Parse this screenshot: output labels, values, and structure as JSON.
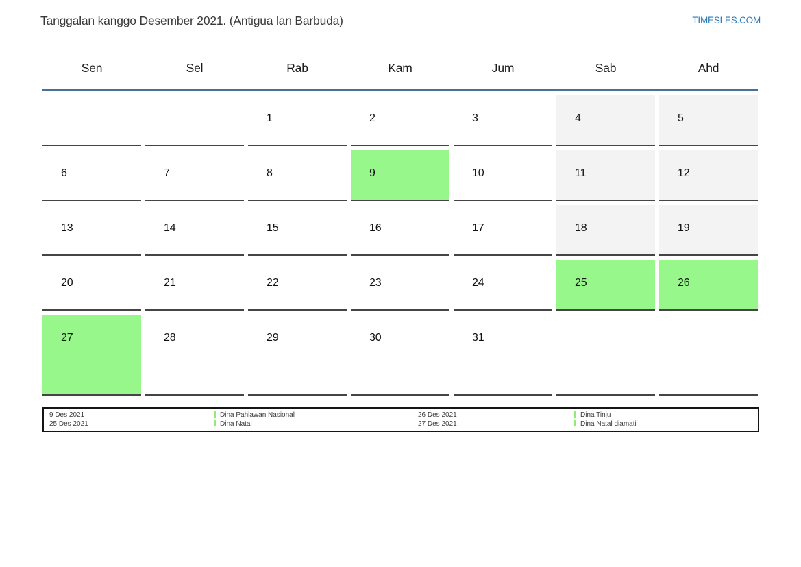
{
  "header": {
    "title": "Tanggalan kanggo Desember 2021. (Antigua lan Barbuda)",
    "site_link": "TIMESLES.COM"
  },
  "calendar": {
    "day_headers": [
      "Sen",
      "Sel",
      "Rab",
      "Kam",
      "Jum",
      "Sab",
      "Ahd"
    ],
    "weeks": [
      [
        {
          "day": ""
        },
        {
          "day": ""
        },
        {
          "day": "1"
        },
        {
          "day": "2"
        },
        {
          "day": "3"
        },
        {
          "day": "4",
          "weekend": true
        },
        {
          "day": "5",
          "weekend": true
        }
      ],
      [
        {
          "day": "6"
        },
        {
          "day": "7"
        },
        {
          "day": "8"
        },
        {
          "day": "9",
          "holiday": true
        },
        {
          "day": "10"
        },
        {
          "day": "11",
          "weekend": true
        },
        {
          "day": "12",
          "weekend": true
        }
      ],
      [
        {
          "day": "13"
        },
        {
          "day": "14"
        },
        {
          "day": "15"
        },
        {
          "day": "16"
        },
        {
          "day": "17"
        },
        {
          "day": "18",
          "weekend": true
        },
        {
          "day": "19",
          "weekend": true
        }
      ],
      [
        {
          "day": "20"
        },
        {
          "day": "21"
        },
        {
          "day": "22"
        },
        {
          "day": "23"
        },
        {
          "day": "24"
        },
        {
          "day": "25",
          "holiday": true
        },
        {
          "day": "26",
          "holiday": true
        }
      ],
      [
        {
          "day": "27",
          "holiday": true
        },
        {
          "day": "28"
        },
        {
          "day": "29"
        },
        {
          "day": "30"
        },
        {
          "day": "31"
        },
        {
          "day": ""
        },
        {
          "day": ""
        }
      ]
    ]
  },
  "legend": {
    "groups": [
      {
        "dates": [
          "9 Des 2021",
          "25 Des 2021"
        ],
        "labels": [
          "Dina Pahlawan Nasional",
          "Dina Natal"
        ]
      },
      {
        "dates": [
          "26 Des 2021",
          "27 Des 2021"
        ],
        "labels": [
          "Dina Tinju",
          "Dina Natal diamati"
        ]
      }
    ]
  },
  "colors": {
    "holiday_green": "#98f78b",
    "weekend_gray": "#f3f3f3",
    "header_rule_blue": "#4c7095",
    "link_blue": "#2c7cba",
    "legend_marker_green": "#8cf06c"
  }
}
